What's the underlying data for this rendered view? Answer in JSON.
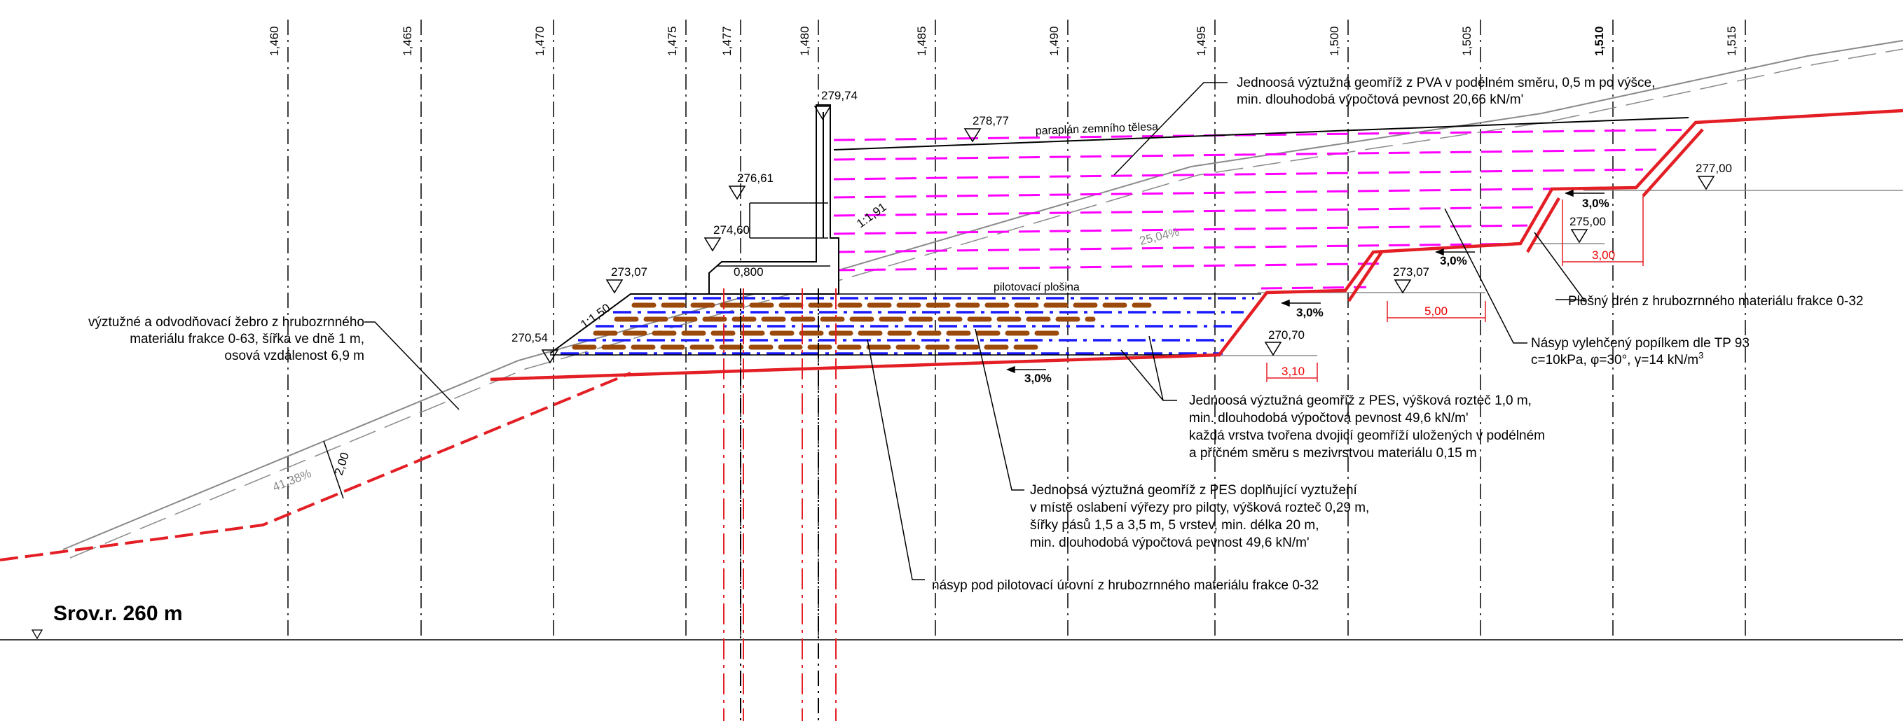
{
  "colors": {
    "red": "#e31e24",
    "magenta": "#ff00ff",
    "blue": "#1a1aff",
    "brown": "#9c4a0c",
    "grey": "#8a8a8a",
    "black": "#000000"
  },
  "datum_label": "Srov.r. 260 m",
  "stations": [
    "1,460",
    "1,465",
    "1,470",
    "1,475",
    "1,477",
    "1,480",
    "1,485",
    "1,490",
    "1,495",
    "1,500",
    "1,505",
    "1,510",
    "1,515"
  ],
  "elevations": {
    "e279_74": "279,74",
    "e278_77": "278,77",
    "e276_61": "276,61",
    "e274_60": "274,60",
    "e273_07a": "273,07",
    "e273_07b": "273,07",
    "e270_54": "270,54",
    "e270_70": "270,70",
    "e275_00": "275,00",
    "e277_00": "277,00"
  },
  "dimensions": {
    "d0_800": "0,800",
    "d2_00": "2,00",
    "d3_10": "3,10",
    "d5_00": "5,00",
    "d3_00": "3,00"
  },
  "slopes": {
    "s1_50": "1:1,50",
    "s1_91": "1:1,91",
    "s25_04": "25,04%",
    "s41_38": "41,38%",
    "s3_0_a": "3,0%",
    "s3_0_b": "3,0%",
    "s3_0_c": "3,0%",
    "s3_0_d": "3,0%"
  },
  "labels": {
    "paraplan": "paraplán zemního tělesa",
    "pilotovaci": "pilotovací plošina",
    "pva": [
      "Jednoosá výztužná geomříž z PVA v podélném směru, 0,5 m po výšce,",
      "min. dlouhodobá výpočtová pevnost 20,66 kN/m'"
    ],
    "zebro": [
      "výztužné a odvodňovací žebro z hrubozrnného",
      "materiálu frakce 0-63, šířka ve dně 1 m,",
      "osová vzdálenost  6,9 m"
    ],
    "plosny_dren": "Plošný drén z hrubozrnného materiálu frakce 0-32",
    "nasyp_popilek": [
      "Násyp vylehčený popílkem dle TP 93",
      "c=10kPa, φ=30°, γ=14 kN/m"
    ],
    "nasyp_popilek_sup": "3",
    "pes_main": [
      "Jednoosá výztužná geomříž z PES, výšková rozteč 1,0 m,",
      "min. dlouhodobá výpočtová pevnost 49,6 kN/m'",
      "každá vrstva tvořena dvojicí geomříží uložených v podélném",
      "a příčném směru s mezivrstvou materiálu 0,15 m"
    ],
    "pes_extra": [
      "Jednoosá výztužná geomříž z PES doplňující vyztužení",
      "v místě oslabení výřezy pro piloty, výšková rozteč 0,29 m,",
      "šířky pásů 1,5 a 3,5 m, 5 vrstev, min. délka 20 m,",
      "min. dlouhodobá výpočtová pevnost 49,6 kN/m'"
    ],
    "nasyp_pod": "násyp pod pilotovací úrovní z hrubozrnného materiálu frakce 0-32"
  }
}
